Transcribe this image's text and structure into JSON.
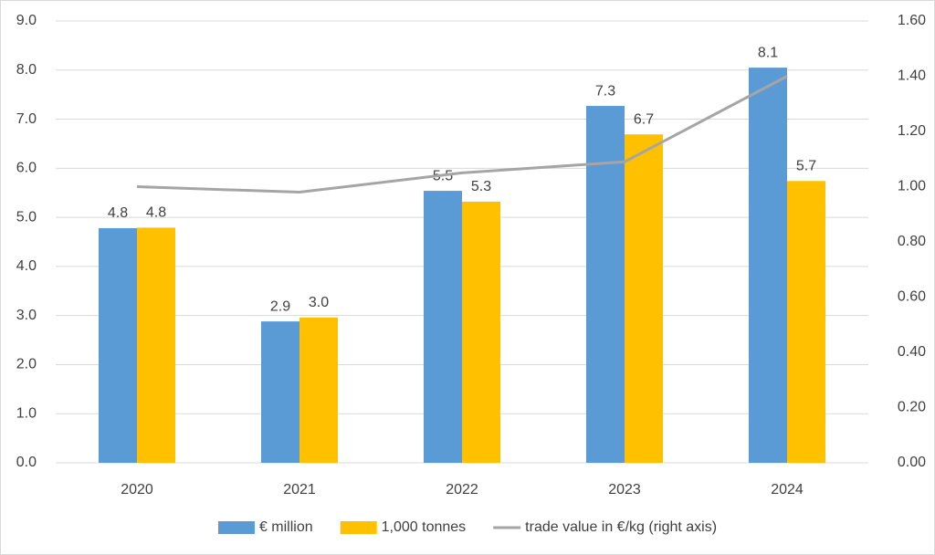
{
  "chart_data": {
    "type": "bar",
    "categories": [
      "2020",
      "2021",
      "2022",
      "2023",
      "2024"
    ],
    "series": [
      {
        "name": "€ million",
        "color": "#5b9bd5",
        "type": "bar",
        "values": [
          4.78,
          2.88,
          5.54,
          7.27,
          8.05
        ],
        "value_labels": [
          "4.8",
          "2.9",
          "5.5",
          "7.3",
          "8.1"
        ]
      },
      {
        "name": "1,000 tonnes",
        "color": "#ffc000",
        "type": "bar",
        "values": [
          4.79,
          2.96,
          5.32,
          6.69,
          5.74
        ],
        "value_labels": [
          "4.8",
          "3.0",
          "5.3",
          "6.7",
          "5.7"
        ]
      },
      {
        "name": "trade value in €/kg (right axis)",
        "color": "#a5a5a5",
        "type": "line",
        "axis": "y2",
        "values": [
          1.0,
          0.98,
          1.05,
          1.09,
          1.4
        ]
      }
    ],
    "ylim": [
      0,
      9
    ],
    "yticks": [
      {
        "value": 0,
        "label": "0.0"
      },
      {
        "value": 1,
        "label": "1.0"
      },
      {
        "value": 2,
        "label": "2.0"
      },
      {
        "value": 3,
        "label": "3.0"
      },
      {
        "value": 4,
        "label": "4.0"
      },
      {
        "value": 5,
        "label": "5.0"
      },
      {
        "value": 6,
        "label": "6.0"
      },
      {
        "value": 7,
        "label": "7.0"
      },
      {
        "value": 8,
        "label": "8.0"
      },
      {
        "value": 9,
        "label": "9.0"
      }
    ],
    "y2lim": [
      0,
      1.6
    ],
    "y2ticks": [
      {
        "value": 0,
        "label": "0.00"
      },
      {
        "value": 0.2,
        "label": "0.20"
      },
      {
        "value": 0.4,
        "label": "0.40"
      },
      {
        "value": 0.6,
        "label": "0.60"
      },
      {
        "value": 0.8,
        "label": "0.80"
      },
      {
        "value": 1,
        "label": "1.00"
      },
      {
        "value": 1.2,
        "label": "1.20"
      },
      {
        "value": 1.4,
        "label": "1.40"
      },
      {
        "value": 1.6,
        "label": "1.60"
      }
    ],
    "grid": true,
    "legend": "bottom"
  }
}
